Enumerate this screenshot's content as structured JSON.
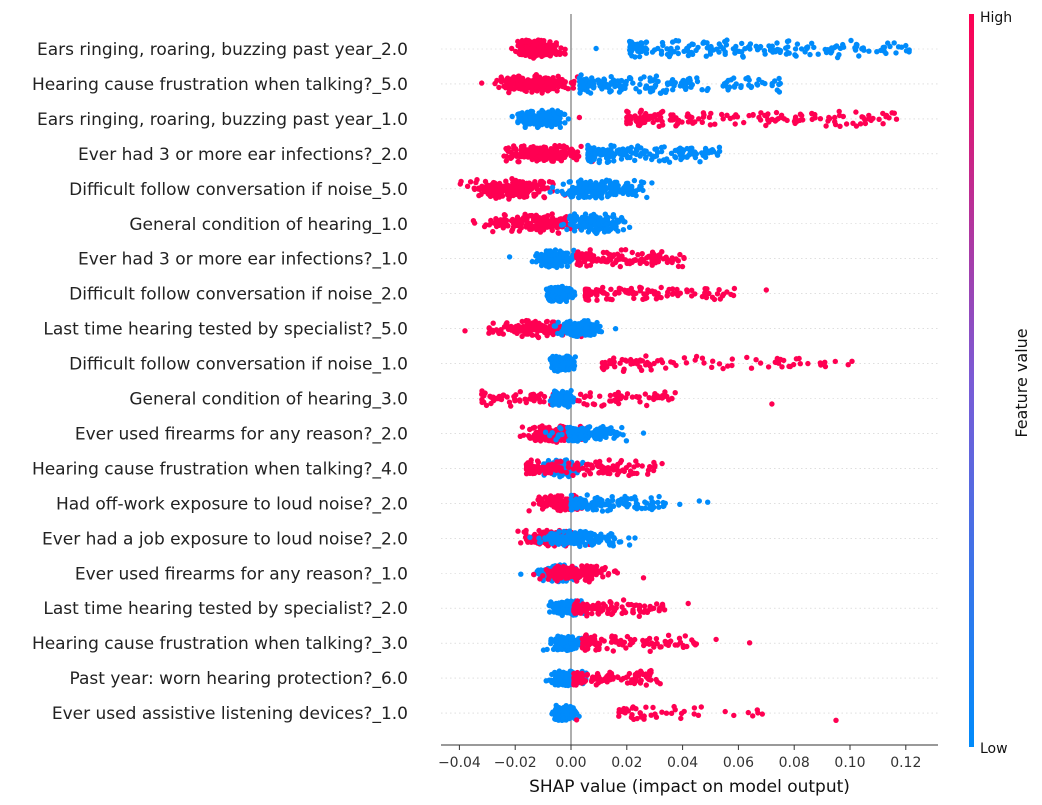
{
  "chart_data": {
    "type": "scatter",
    "subtype": "shap-beeswarm",
    "xlabel": "SHAP value (impact on model output)",
    "xlim": [
      -0.047,
      0.131
    ],
    "xticks": [
      -0.04,
      -0.02,
      0.0,
      0.02,
      0.04,
      0.06,
      0.08,
      0.1,
      0.12
    ],
    "xtick_labels": [
      "−0.04",
      "−0.02",
      "0.00",
      "0.02",
      "0.04",
      "0.06",
      "0.08",
      "0.10",
      "0.12"
    ],
    "colorbar": {
      "title": "Feature value",
      "high_label": "High",
      "low_label": "Low"
    },
    "colors": {
      "high": "#ff0052",
      "low": "#008bfb",
      "zero_line": "#999999",
      "row_grid": "#cccccc"
    },
    "features": [
      {
        "name": "Ears ringing, roaring, buzzing past year_2.0",
        "spread": 0.55,
        "clusters": [
          {
            "color": "high",
            "center": -0.012,
            "width": 0.004,
            "count": 230
          },
          {
            "color": "low",
            "dist": "uniform",
            "min": 0.021,
            "max": 0.122,
            "count": 190
          }
        ],
        "outliers": [
          {
            "x": 0.009,
            "color": "low"
          },
          {
            "x": 0.12,
            "color": "low"
          }
        ]
      },
      {
        "name": "Hearing cause frustration when talking?_5.0",
        "spread": 0.6,
        "clusters": [
          {
            "color": "high",
            "center": -0.014,
            "width": 0.006,
            "count": 220
          },
          {
            "color": "low",
            "dist": "uniform",
            "min": 0.003,
            "max": 0.075,
            "count": 180
          }
        ],
        "outliers": [
          {
            "x": -0.032,
            "color": "high"
          },
          {
            "x": 0.075,
            "color": "low"
          }
        ]
      },
      {
        "name": "Ears ringing, roaring, buzzing past year_1.0",
        "spread": 0.5,
        "clusters": [
          {
            "color": "low",
            "center": -0.011,
            "width": 0.004,
            "count": 210
          },
          {
            "color": "high",
            "dist": "uniform",
            "min": 0.02,
            "max": 0.117,
            "count": 170
          }
        ],
        "outliers": [
          {
            "x": 0.003,
            "color": "high"
          }
        ]
      },
      {
        "name": "Ever had 3 or more ear infections?_2.0",
        "spread": 0.55,
        "clusters": [
          {
            "color": "high",
            "center": -0.01,
            "width": 0.006,
            "count": 200
          },
          {
            "color": "low",
            "dist": "uniform",
            "min": 0.006,
            "max": 0.055,
            "count": 180
          }
        ],
        "outliers": [
          {
            "x": -0.024,
            "color": "high"
          }
        ]
      },
      {
        "name": "Difficult follow conversation if noise_5.0",
        "spread": 0.65,
        "clusters": [
          {
            "color": "high",
            "center": -0.022,
            "width": 0.007,
            "count": 200
          },
          {
            "color": "low",
            "center": 0.011,
            "width": 0.007,
            "count": 200
          }
        ],
        "outliers": [
          {
            "x": -0.036,
            "color": "high"
          },
          {
            "x": 0.029,
            "color": "low"
          }
        ]
      },
      {
        "name": "General condition of hearing_1.0",
        "spread": 0.65,
        "clusters": [
          {
            "color": "high",
            "center": -0.013,
            "width": 0.008,
            "count": 180
          },
          {
            "color": "low",
            "center": 0.009,
            "width": 0.005,
            "count": 170
          }
        ],
        "outliers": [
          {
            "x": -0.035,
            "color": "high"
          },
          {
            "x": 0.021,
            "color": "low"
          }
        ]
      },
      {
        "name": "Ever had 3 or more ear infections?_1.0",
        "spread": 0.55,
        "clusters": [
          {
            "color": "low",
            "center": -0.006,
            "width": 0.003,
            "count": 170
          },
          {
            "color": "high",
            "dist": "uniform",
            "min": 0.002,
            "max": 0.041,
            "count": 130
          }
        ],
        "outliers": [
          {
            "x": -0.022,
            "color": "low"
          }
        ]
      },
      {
        "name": "Difficult follow conversation if noise_2.0",
        "spread": 0.45,
        "clusters": [
          {
            "color": "low",
            "center": -0.004,
            "width": 0.002,
            "count": 150
          },
          {
            "color": "high",
            "dist": "uniform",
            "min": 0.005,
            "max": 0.06,
            "count": 110
          }
        ],
        "outliers": [
          {
            "x": 0.07,
            "color": "high"
          }
        ]
      },
      {
        "name": "Last time hearing tested by specialist?_5.0",
        "spread": 0.5,
        "clusters": [
          {
            "color": "high",
            "center": -0.012,
            "width": 0.008,
            "count": 160
          },
          {
            "color": "low",
            "center": 0.004,
            "width": 0.004,
            "count": 150
          }
        ],
        "outliers": [
          {
            "x": -0.038,
            "color": "high"
          },
          {
            "x": -0.028,
            "color": "high"
          },
          {
            "x": 0.016,
            "color": "low"
          }
        ]
      },
      {
        "name": "Difficult follow conversation if noise_1.0",
        "spread": 0.45,
        "clusters": [
          {
            "color": "low",
            "center": -0.003,
            "width": 0.002,
            "count": 150
          },
          {
            "color": "high",
            "dist": "uniform",
            "min": 0.011,
            "max": 0.104,
            "count": 90
          }
        ],
        "outliers": []
      },
      {
        "name": "General condition of hearing_3.0",
        "spread": 0.45,
        "clusters": [
          {
            "color": "high",
            "dist": "uniform",
            "min": -0.032,
            "max": 0.04,
            "count": 120
          },
          {
            "color": "low",
            "center": -0.003,
            "width": 0.002,
            "count": 130
          }
        ],
        "outliers": [
          {
            "x": 0.072,
            "color": "high"
          }
        ]
      },
      {
        "name": "Ever used firearms for any reason?_2.0",
        "spread": 0.5,
        "clusters": [
          {
            "color": "high",
            "center": -0.005,
            "width": 0.005,
            "count": 170
          },
          {
            "color": "low",
            "center": 0.006,
            "width": 0.006,
            "count": 150
          }
        ],
        "outliers": [
          {
            "x": -0.017,
            "color": "high"
          },
          {
            "x": 0.026,
            "color": "low"
          }
        ]
      },
      {
        "name": "Hearing cause frustration when talking?_4.0",
        "spread": 0.5,
        "clusters": [
          {
            "color": "low",
            "center": -0.004,
            "width": 0.003,
            "count": 160
          },
          {
            "color": "high",
            "dist": "uniform",
            "min": -0.016,
            "max": 0.033,
            "count": 150
          }
        ],
        "outliers": []
      },
      {
        "name": "Had off-work exposure to loud noise?_2.0",
        "spread": 0.45,
        "clusters": [
          {
            "color": "high",
            "center": -0.004,
            "width": 0.004,
            "count": 150
          },
          {
            "color": "low",
            "dist": "uniform",
            "min": 0.0,
            "max": 0.034,
            "count": 130
          }
        ],
        "outliers": [
          {
            "x": -0.015,
            "color": "high"
          },
          {
            "x": 0.039,
            "color": "low"
          },
          {
            "x": 0.046,
            "color": "low"
          },
          {
            "x": 0.049,
            "color": "low"
          }
        ]
      },
      {
        "name": "Ever had a job exposure to loud noise?_2.0",
        "spread": 0.45,
        "clusters": [
          {
            "color": "high",
            "center": -0.007,
            "width": 0.005,
            "count": 150
          },
          {
            "color": "low",
            "center": 0.004,
            "width": 0.007,
            "count": 150
          }
        ],
        "outliers": [
          {
            "x": -0.019,
            "color": "high"
          },
          {
            "x": 0.021,
            "color": "low"
          }
        ]
      },
      {
        "name": "Ever used firearms for any reason?_1.0",
        "spread": 0.5,
        "clusters": [
          {
            "color": "low",
            "center": -0.004,
            "width": 0.004,
            "count": 150
          },
          {
            "color": "high",
            "center": 0.002,
            "width": 0.006,
            "count": 160
          }
        ],
        "outliers": [
          {
            "x": -0.018,
            "color": "low"
          },
          {
            "x": 0.026,
            "color": "high"
          }
        ]
      },
      {
        "name": "Last time hearing tested by specialist?_2.0",
        "spread": 0.45,
        "clusters": [
          {
            "color": "low",
            "center": -0.001,
            "width": 0.003,
            "count": 150
          },
          {
            "color": "high",
            "dist": "uniform",
            "min": 0.001,
            "max": 0.034,
            "count": 120
          }
        ],
        "outliers": [
          {
            "x": 0.042,
            "color": "high"
          }
        ]
      },
      {
        "name": "Hearing cause frustration when talking?_3.0",
        "spread": 0.45,
        "clusters": [
          {
            "color": "low",
            "center": -0.002,
            "width": 0.003,
            "count": 150
          },
          {
            "color": "high",
            "dist": "uniform",
            "min": 0.004,
            "max": 0.045,
            "count": 100
          }
        ],
        "outliers": [
          {
            "x": 0.052,
            "color": "high"
          },
          {
            "x": 0.064,
            "color": "high"
          }
        ]
      },
      {
        "name": "Past year: worn hearing protection?_6.0",
        "spread": 0.45,
        "clusters": [
          {
            "color": "low",
            "center": -0.001,
            "width": 0.003,
            "count": 150
          },
          {
            "color": "high",
            "dist": "uniform",
            "min": 0.001,
            "max": 0.032,
            "count": 110
          }
        ],
        "outliers": []
      },
      {
        "name": "Ever used assistive listening devices?_1.0",
        "spread": 0.45,
        "clusters": [
          {
            "color": "low",
            "center": -0.002,
            "width": 0.002,
            "count": 150
          },
          {
            "color": "high",
            "dist": "uniform",
            "min": 0.017,
            "max": 0.072,
            "count": 45
          }
        ],
        "outliers": [
          {
            "x": 0.095,
            "color": "high"
          },
          {
            "x": 0.002,
            "color": "high"
          }
        ]
      }
    ]
  }
}
